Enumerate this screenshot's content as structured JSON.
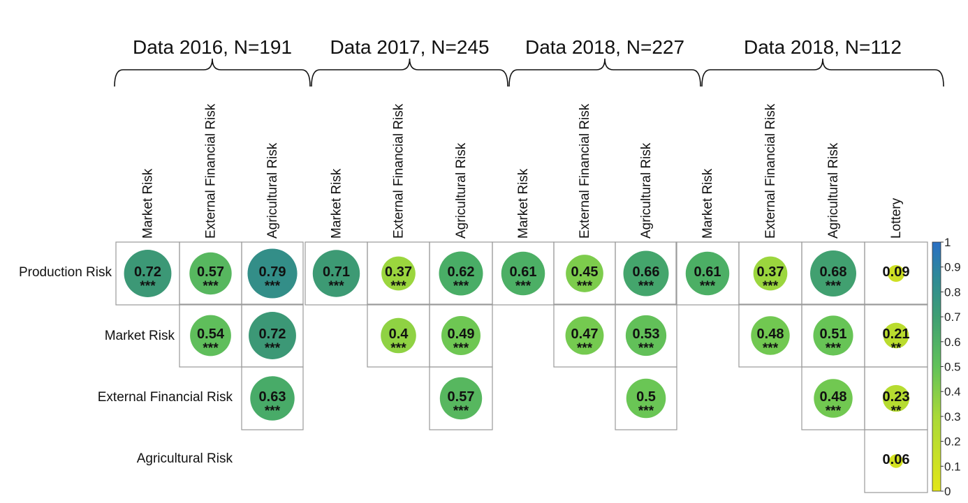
{
  "chart_data": {
    "type": "heatmap",
    "subtype": "correlation-circle-matrix",
    "row_labels": [
      "Production Risk",
      "Market Risk",
      "External Financial Risk",
      "Agricultural Risk"
    ],
    "legend": {
      "ticks": [
        "0",
        "0.1",
        "0.2",
        "0.3",
        "0.4",
        "0.5",
        "0.6",
        "0.7",
        "0.8",
        "0.9",
        "1"
      ],
      "colors": [
        "#dde31c",
        "#7fc94a",
        "#47ad66",
        "#3d9a7a",
        "#2a7fbd"
      ]
    },
    "panels": [
      {
        "title": "Data 2016, N=191",
        "columns": [
          "Market Risk",
          "External Financial Risk",
          "Agricultural Risk"
        ],
        "cells": [
          {
            "row": 0,
            "col": 0,
            "value": "0.72",
            "stars": "***"
          },
          {
            "row": 0,
            "col": 1,
            "value": "0.57",
            "stars": "***"
          },
          {
            "row": 0,
            "col": 2,
            "value": "0.79",
            "stars": "***"
          },
          {
            "row": 1,
            "col": 1,
            "value": "0.54",
            "stars": "***"
          },
          {
            "row": 1,
            "col": 2,
            "value": "0.72",
            "stars": "***"
          },
          {
            "row": 2,
            "col": 2,
            "value": "0.63",
            "stars": "***"
          }
        ]
      },
      {
        "title": "Data 2017, N=245",
        "columns": [
          "Market Risk",
          "External Financial Risk",
          "Agricultural Risk"
        ],
        "cells": [
          {
            "row": 0,
            "col": 0,
            "value": "0.71",
            "stars": "***"
          },
          {
            "row": 0,
            "col": 1,
            "value": "0.37",
            "stars": "***"
          },
          {
            "row": 0,
            "col": 2,
            "value": "0.62",
            "stars": "***"
          },
          {
            "row": 1,
            "col": 1,
            "value": "0.4",
            "stars": "***"
          },
          {
            "row": 1,
            "col": 2,
            "value": "0.49",
            "stars": "***"
          },
          {
            "row": 2,
            "col": 2,
            "value": "0.57",
            "stars": "***"
          }
        ]
      },
      {
        "title": "Data 2018, N=227",
        "columns": [
          "Market Risk",
          "External Financial Risk",
          "Agricultural Risk"
        ],
        "cells": [
          {
            "row": 0,
            "col": 0,
            "value": "0.61",
            "stars": "***"
          },
          {
            "row": 0,
            "col": 1,
            "value": "0.45",
            "stars": "***"
          },
          {
            "row": 0,
            "col": 2,
            "value": "0.66",
            "stars": "***"
          },
          {
            "row": 1,
            "col": 1,
            "value": "0.47",
            "stars": "***"
          },
          {
            "row": 1,
            "col": 2,
            "value": "0.53",
            "stars": "***"
          },
          {
            "row": 2,
            "col": 2,
            "value": "0.5",
            "stars": "***"
          }
        ]
      },
      {
        "title": "Data 2018, N=112",
        "columns": [
          "Market Risk",
          "External Financial Risk",
          "Agricultural Risk",
          "Lottery"
        ],
        "cells": [
          {
            "row": 0,
            "col": 0,
            "value": "0.61",
            "stars": "***"
          },
          {
            "row": 0,
            "col": 1,
            "value": "0.37",
            "stars": "***"
          },
          {
            "row": 0,
            "col": 2,
            "value": "0.68",
            "stars": "***"
          },
          {
            "row": 0,
            "col": 3,
            "value": "0.09",
            "stars": ""
          },
          {
            "row": 1,
            "col": 1,
            "value": "0.48",
            "stars": "***"
          },
          {
            "row": 1,
            "col": 2,
            "value": "0.51",
            "stars": "***"
          },
          {
            "row": 1,
            "col": 3,
            "value": "0.21",
            "stars": "**"
          },
          {
            "row": 2,
            "col": 2,
            "value": "0.48",
            "stars": "***"
          },
          {
            "row": 2,
            "col": 3,
            "value": "0.23",
            "stars": "**"
          },
          {
            "row": 3,
            "col": 3,
            "value": "0.06",
            "stars": ""
          }
        ]
      }
    ]
  }
}
